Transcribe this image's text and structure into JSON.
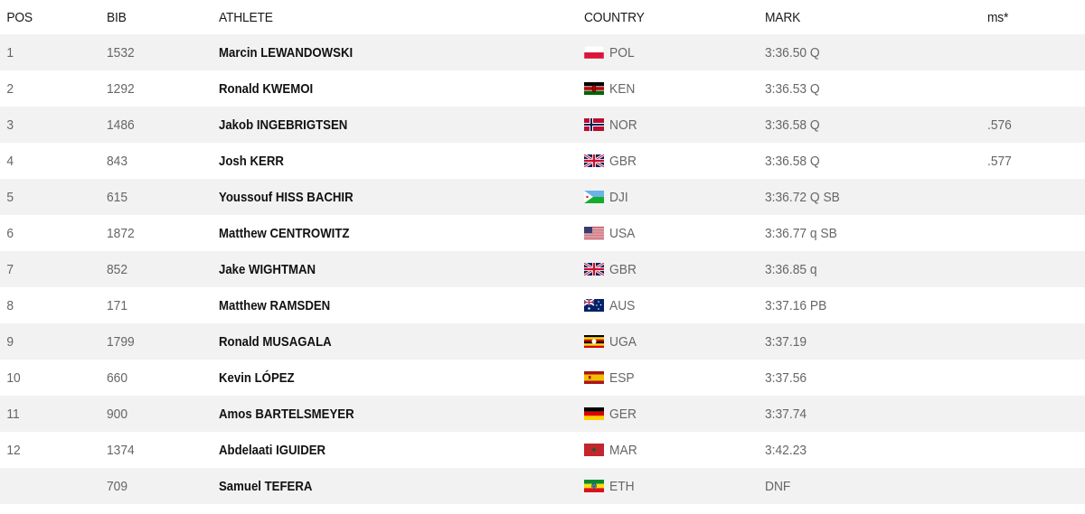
{
  "headers": {
    "pos": "POS",
    "bib": "BIB",
    "athlete": "ATHLETE",
    "country": "COUNTRY",
    "mark": "MARK",
    "ms": "ms*"
  },
  "rows": [
    {
      "pos": "1",
      "bib": "1532",
      "athlete": "Marcin LEWANDOWSKI",
      "country": "POL",
      "mark": "3:36.50 Q",
      "ms": ""
    },
    {
      "pos": "2",
      "bib": "1292",
      "athlete": "Ronald KWEMOI",
      "country": "KEN",
      "mark": "3:36.53 Q",
      "ms": ""
    },
    {
      "pos": "3",
      "bib": "1486",
      "athlete": "Jakob INGEBRIGTSEN",
      "country": "NOR",
      "mark": "3:36.58 Q",
      "ms": ".576"
    },
    {
      "pos": "4",
      "bib": "843",
      "athlete": "Josh KERR",
      "country": "GBR",
      "mark": "3:36.58 Q",
      "ms": ".577"
    },
    {
      "pos": "5",
      "bib": "615",
      "athlete": "Youssouf HISS BACHIR",
      "country": "DJI",
      "mark": "3:36.72 Q SB",
      "ms": ""
    },
    {
      "pos": "6",
      "bib": "1872",
      "athlete": "Matthew CENTROWITZ",
      "country": "USA",
      "mark": "3:36.77 q SB",
      "ms": ""
    },
    {
      "pos": "7",
      "bib": "852",
      "athlete": "Jake WIGHTMAN",
      "country": "GBR",
      "mark": "3:36.85 q",
      "ms": ""
    },
    {
      "pos": "8",
      "bib": "171",
      "athlete": "Matthew RAMSDEN",
      "country": "AUS",
      "mark": "3:37.16 PB",
      "ms": ""
    },
    {
      "pos": "9",
      "bib": "1799",
      "athlete": "Ronald MUSAGALA",
      "country": "UGA",
      "mark": "3:37.19",
      "ms": ""
    },
    {
      "pos": "10",
      "bib": "660",
      "athlete": "Kevin LÓPEZ",
      "country": "ESP",
      "mark": "3:37.56",
      "ms": ""
    },
    {
      "pos": "11",
      "bib": "900",
      "athlete": "Amos BARTELSMEYER",
      "country": "GER",
      "mark": "3:37.74",
      "ms": ""
    },
    {
      "pos": "12",
      "bib": "1374",
      "athlete": "Abdelaati IGUIDER",
      "country": "MAR",
      "mark": "3:42.23",
      "ms": ""
    },
    {
      "pos": "",
      "bib": "709",
      "athlete": "Samuel TEFERA",
      "country": "ETH",
      "mark": "DNF",
      "ms": ""
    }
  ],
  "colors": {
    "row_shade": "#f2f2f2",
    "text_primary": "#111111",
    "text_secondary": "#666666"
  }
}
